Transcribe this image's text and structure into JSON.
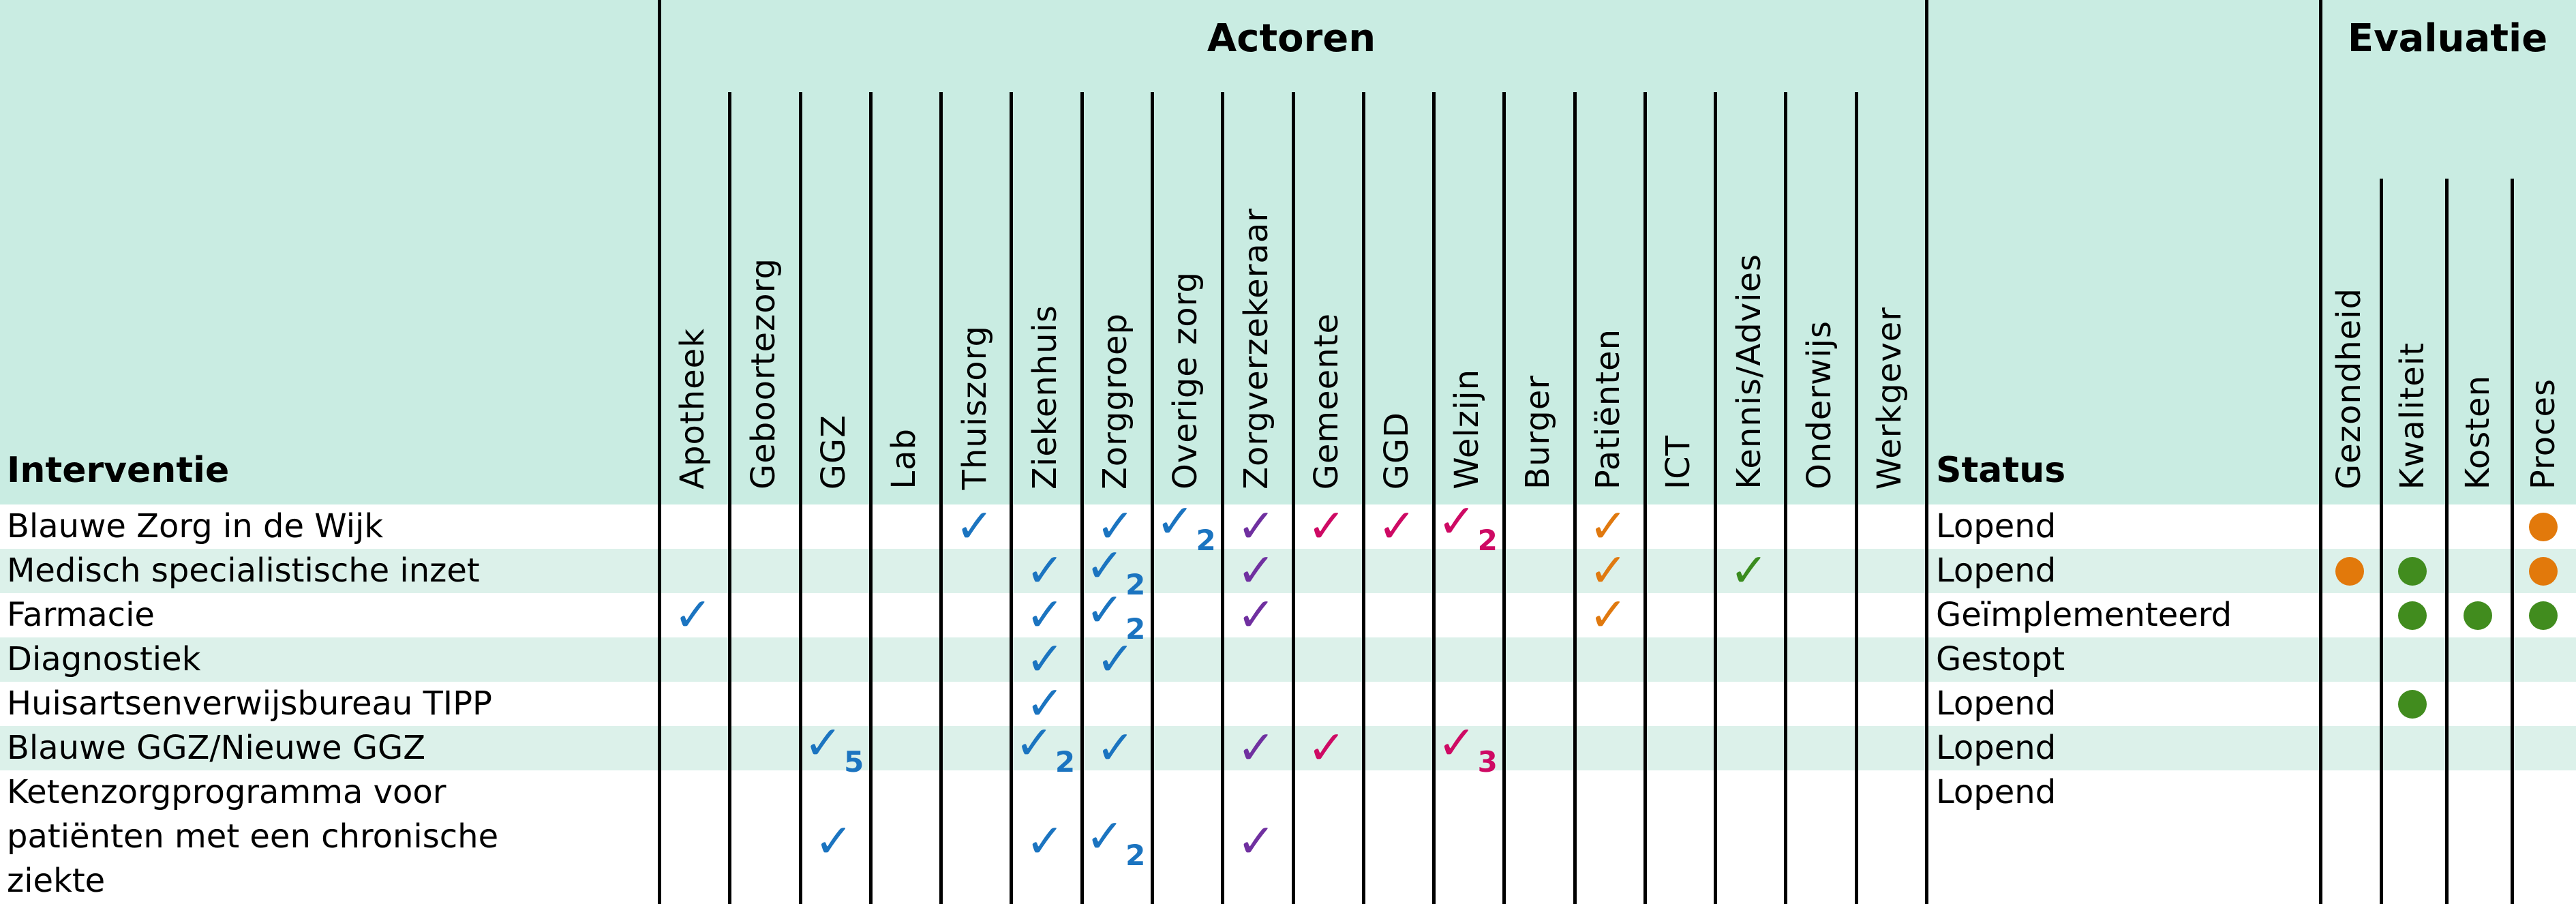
{
  "header": {
    "actoren_title": "Actoren",
    "evaluatie_title": "Evaluatie",
    "interventie_label": "Interventie",
    "status_label": "Status",
    "actor_columns": [
      "Apotheek",
      "Geboortezorg",
      "GGZ",
      "Lab",
      "Thuiszorg",
      "Ziekenhuis",
      "Zorggroep",
      "Overige zorg",
      "Zorgverzekeraar",
      "Gemeente",
      "GGD",
      "Welzijn",
      "Burger",
      "Patiënten",
      "ICT",
      "Kennis/Advies",
      "Onderwijs",
      "Werkgever"
    ],
    "eval_columns": [
      "Gezondheid",
      "Kwaliteit",
      "Kosten",
      "Proces"
    ]
  },
  "icons": {
    "check_glyph": "✓",
    "dot": "evaluation-dot"
  },
  "colors": {
    "header_bg": "#c9ece2",
    "stripe_bg": "#dcf1ea",
    "line": "#000000",
    "marks": {
      "blue": "#1b74c0",
      "purple": "#7030a0",
      "pink": "#ce0a64",
      "orange": "#e0790f",
      "green": "#3a8c1e"
    },
    "dots": {
      "orange": "#e2790b",
      "green": "#418c1e"
    }
  },
  "rows": [
    {
      "label": "Blauwe Zorg in de Wijk",
      "status": "Lopend",
      "shaded": false,
      "marks": [
        {
          "col": "Thuiszorg",
          "color": "blue"
        },
        {
          "col": "Zorggroep",
          "color": "blue"
        },
        {
          "col": "Overige zorg",
          "color": "blue",
          "sub": "2"
        },
        {
          "col": "Zorgverzekeraar",
          "color": "purple"
        },
        {
          "col": "Gemeente",
          "color": "pink"
        },
        {
          "col": "GGD",
          "color": "pink"
        },
        {
          "col": "Welzijn",
          "color": "pink",
          "sub": "2"
        },
        {
          "col": "Patiënten",
          "color": "orange"
        }
      ],
      "evaluation": [
        {
          "col": "Proces",
          "color": "orange"
        }
      ]
    },
    {
      "label": "Medisch specialistische inzet",
      "status": "Lopend",
      "shaded": true,
      "marks": [
        {
          "col": "Ziekenhuis",
          "color": "blue"
        },
        {
          "col": "Zorggroep",
          "color": "blue",
          "sub": "2"
        },
        {
          "col": "Zorgverzekeraar",
          "color": "purple"
        },
        {
          "col": "Patiënten",
          "color": "orange"
        },
        {
          "col": "Kennis/Advies",
          "color": "green"
        }
      ],
      "evaluation": [
        {
          "col": "Gezondheid",
          "color": "orange"
        },
        {
          "col": "Kwaliteit",
          "color": "green"
        },
        {
          "col": "Proces",
          "color": "orange"
        }
      ]
    },
    {
      "label": "Farmacie",
      "status": "Geïmplementeerd",
      "shaded": false,
      "marks": [
        {
          "col": "Apotheek",
          "color": "blue"
        },
        {
          "col": "Ziekenhuis",
          "color": "blue"
        },
        {
          "col": "Zorggroep",
          "color": "blue",
          "sub": "2"
        },
        {
          "col": "Zorgverzekeraar",
          "color": "purple"
        },
        {
          "col": "Patiënten",
          "color": "orange"
        }
      ],
      "evaluation": [
        {
          "col": "Kwaliteit",
          "color": "green"
        },
        {
          "col": "Kosten",
          "color": "green"
        },
        {
          "col": "Proces",
          "color": "green"
        }
      ]
    },
    {
      "label": "Diagnostiek",
      "status": "Gestopt",
      "shaded": true,
      "marks": [
        {
          "col": "Ziekenhuis",
          "color": "blue"
        },
        {
          "col": "Zorggroep",
          "color": "blue"
        }
      ],
      "evaluation": []
    },
    {
      "label": "Huisartsenverwijsbureau TIPP",
      "status": "Lopend",
      "shaded": false,
      "marks": [
        {
          "col": "Ziekenhuis",
          "color": "blue"
        }
      ],
      "evaluation": [
        {
          "col": "Kwaliteit",
          "color": "green"
        }
      ]
    },
    {
      "label": "Blauwe GGZ/Nieuwe GGZ",
      "status": "Lopend",
      "shaded": true,
      "marks": [
        {
          "col": "GGZ",
          "color": "blue",
          "sub": "5"
        },
        {
          "col": "Ziekenhuis",
          "color": "blue",
          "sub": "2"
        },
        {
          "col": "Zorggroep",
          "color": "blue"
        },
        {
          "col": "Zorgverzekeraar",
          "color": "purple"
        },
        {
          "col": "Gemeente",
          "color": "pink"
        },
        {
          "col": "Welzijn",
          "color": "pink",
          "sub": "3"
        }
      ],
      "evaluation": []
    },
    {
      "label": "Ketenzorgprogramma voor patiënten met een chronische ziekte",
      "status": "Lopend",
      "shaded": false,
      "marks": [
        {
          "col": "GGZ",
          "color": "blue"
        },
        {
          "col": "Ziekenhuis",
          "color": "blue"
        },
        {
          "col": "Zorggroep",
          "color": "blue",
          "sub": "2"
        },
        {
          "col": "Zorgverzekeraar",
          "color": "purple"
        }
      ],
      "evaluation": []
    }
  ]
}
